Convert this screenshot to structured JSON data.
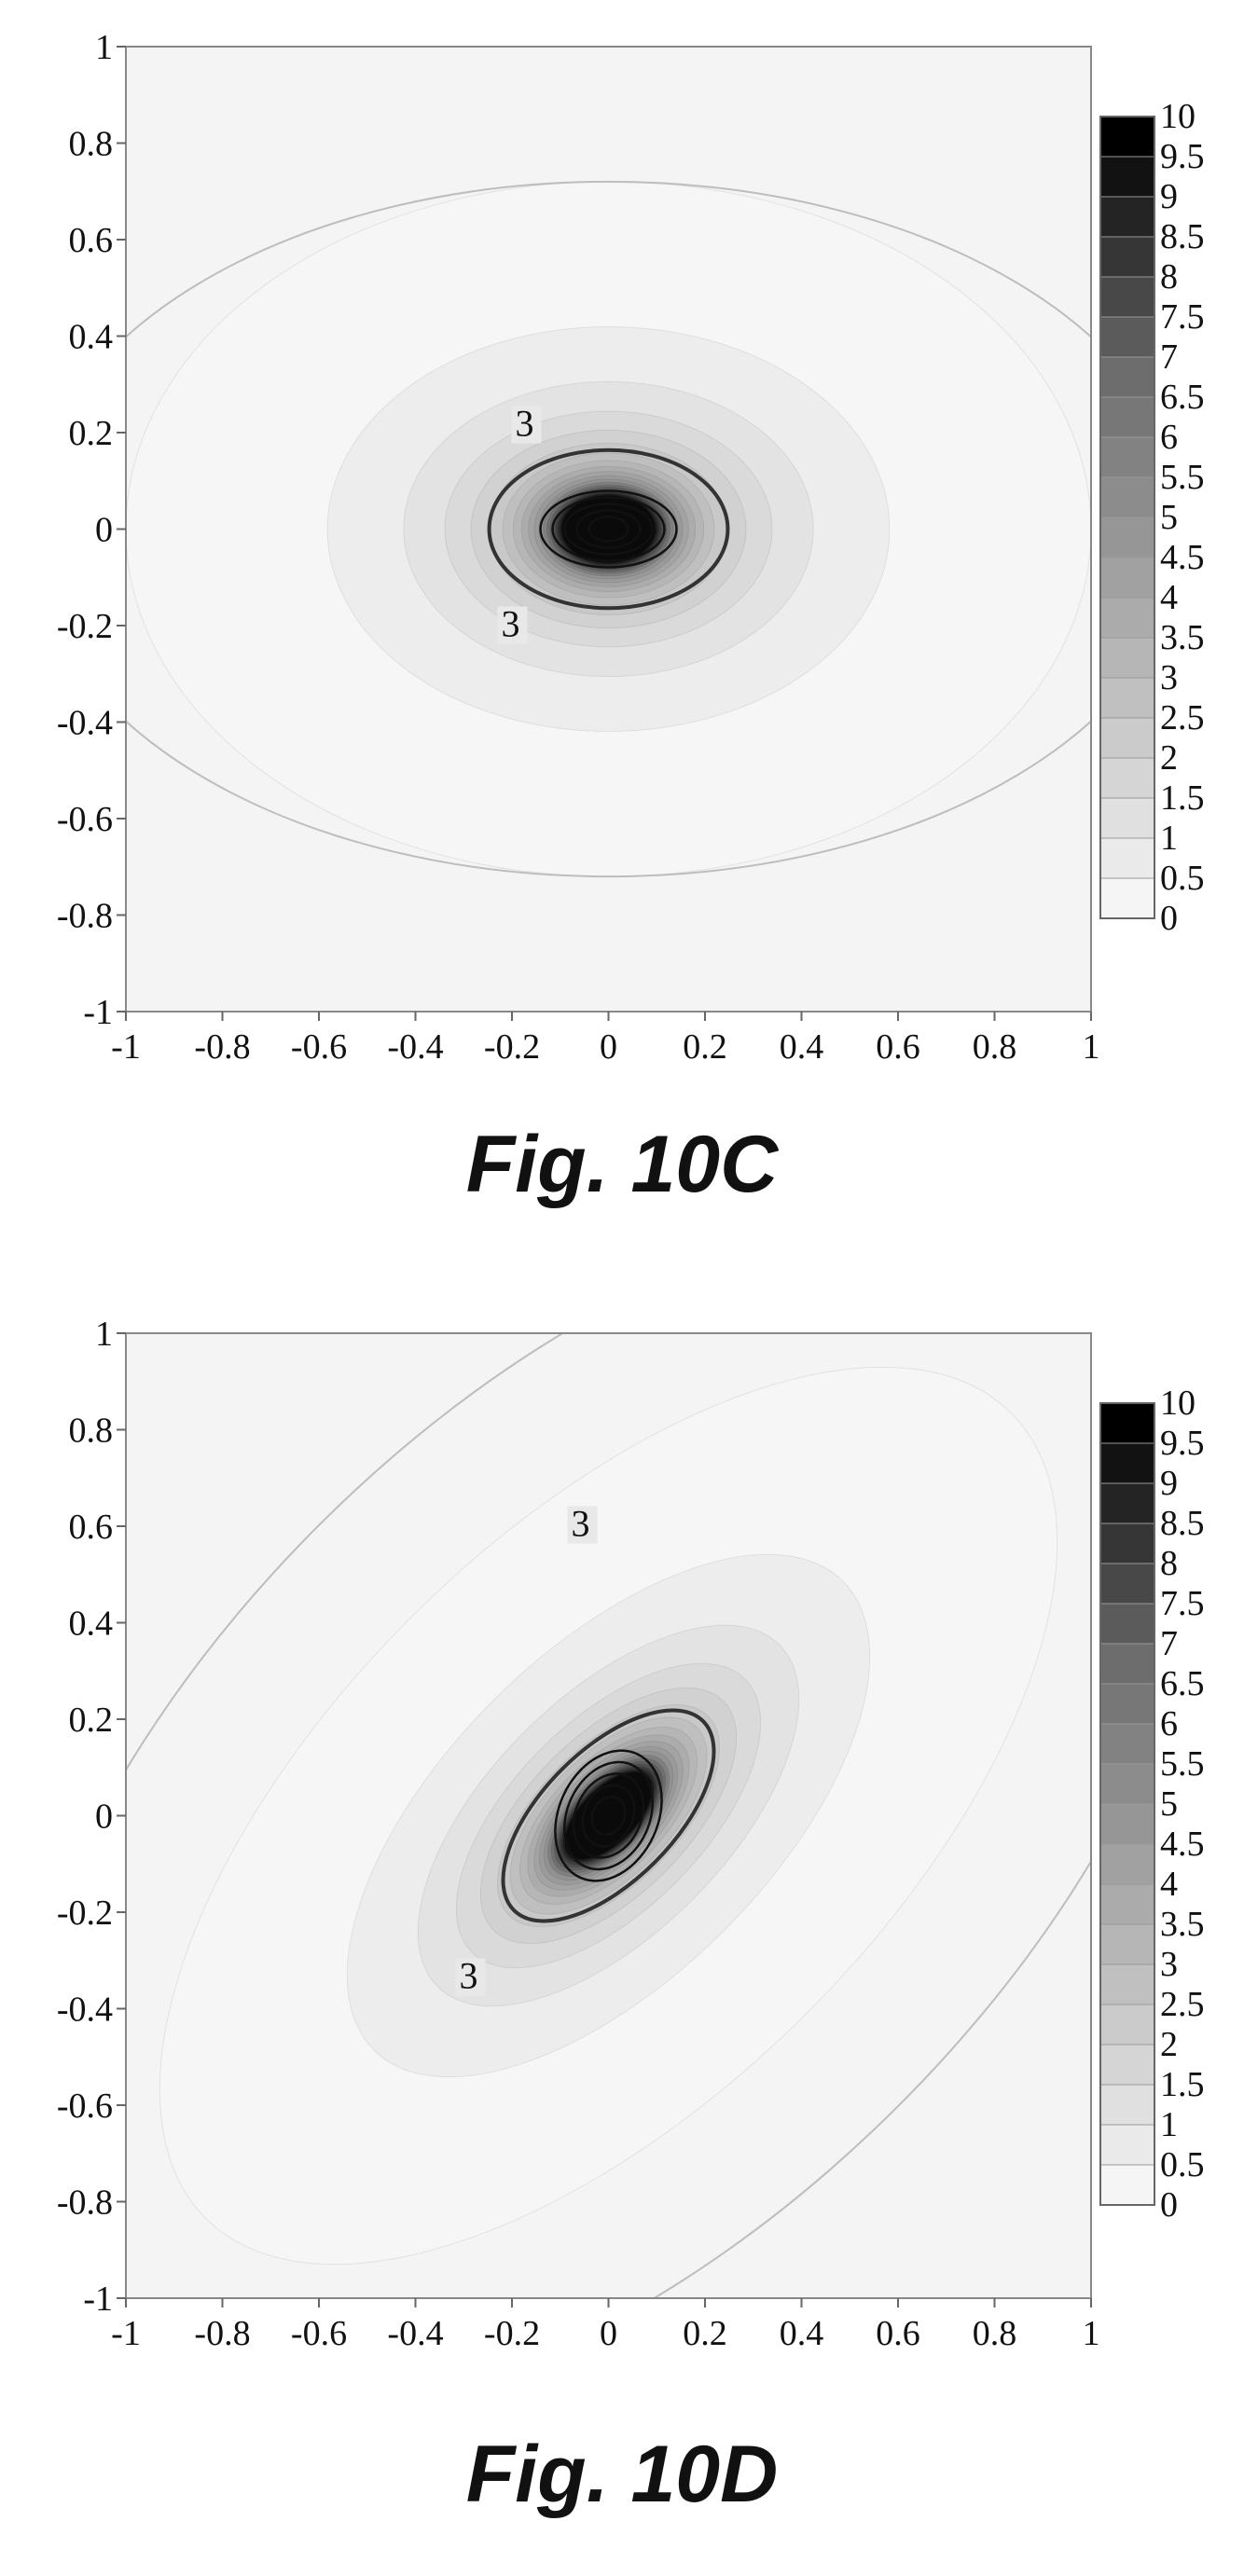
{
  "chart_data": [
    {
      "type": "heatmap",
      "title": "",
      "xlabel": "",
      "ylabel": "",
      "xlim": [
        -1,
        1
      ],
      "ylim": [
        -1,
        1
      ],
      "x_ticks": [
        "-1",
        "-0.8",
        "-0.6",
        "-0.4",
        "-0.2",
        "0",
        "0.2",
        "0.4",
        "0.6",
        "0.8",
        "1"
      ],
      "y_ticks": [
        "1",
        "0.8",
        "0.6",
        "0.4",
        "0.2",
        "0",
        "-0.2",
        "-0.4",
        "-0.6",
        "-0.8",
        "-1"
      ],
      "colorbar_levels": [
        "10",
        "9.5",
        "9",
        "8.5",
        "8",
        "7.5",
        "7",
        "6.5",
        "6",
        "5.5",
        "5",
        "4.5",
        "4",
        "3.5",
        "3",
        "2.5",
        "2",
        "1.5",
        "1",
        "0.5",
        "0"
      ],
      "contour_line_value": 3,
      "contour_labels": [
        "3",
        "3"
      ],
      "ellipse_orientation_deg": 0,
      "grid": false,
      "legend": "right",
      "caption": "Fig. 10C"
    },
    {
      "type": "heatmap",
      "title": "",
      "xlabel": "",
      "ylabel": "",
      "xlim": [
        -1,
        1
      ],
      "ylim": [
        -1,
        1
      ],
      "x_ticks": [
        "-1",
        "-0.8",
        "-0.6",
        "-0.4",
        "-0.2",
        "0",
        "0.2",
        "0.4",
        "0.6",
        "0.8",
        "1"
      ],
      "y_ticks": [
        "1",
        "0.8",
        "0.6",
        "0.4",
        "0.2",
        "0",
        "-0.2",
        "-0.4",
        "-0.6",
        "-0.8",
        "-1"
      ],
      "colorbar_levels": [
        "10",
        "9.5",
        "9",
        "8.5",
        "8",
        "7.5",
        "7",
        "6.5",
        "6",
        "5.5",
        "5",
        "4.5",
        "4",
        "3.5",
        "3",
        "2.5",
        "2",
        "1.5",
        "1",
        "0.5",
        "0"
      ],
      "contour_line_value": 3,
      "contour_labels": [
        "3",
        "3"
      ],
      "ellipse_orientation_deg": 45,
      "grid": false,
      "legend": "right",
      "caption": "Fig. 10D"
    }
  ]
}
